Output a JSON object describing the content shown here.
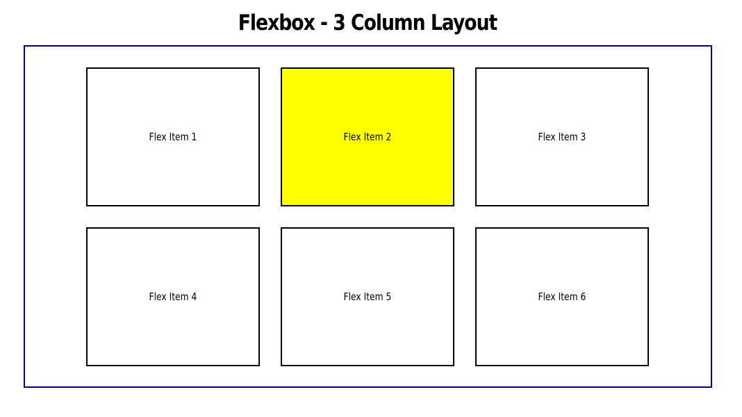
{
  "page": {
    "title": "Flexbox - 3 Column Layout"
  },
  "container": {
    "border_color": "#000080"
  },
  "items": [
    {
      "label": "Flex Item 1",
      "background": "#ffffff"
    },
    {
      "label": "Flex Item 2",
      "background": "#ffff00"
    },
    {
      "label": "Flex Item 3",
      "background": "#ffffff"
    },
    {
      "label": "Flex Item 4",
      "background": "#ffffff"
    },
    {
      "label": "Flex Item 5",
      "background": "#ffffff"
    },
    {
      "label": "Flex Item 6",
      "background": "#ffffff"
    }
  ]
}
